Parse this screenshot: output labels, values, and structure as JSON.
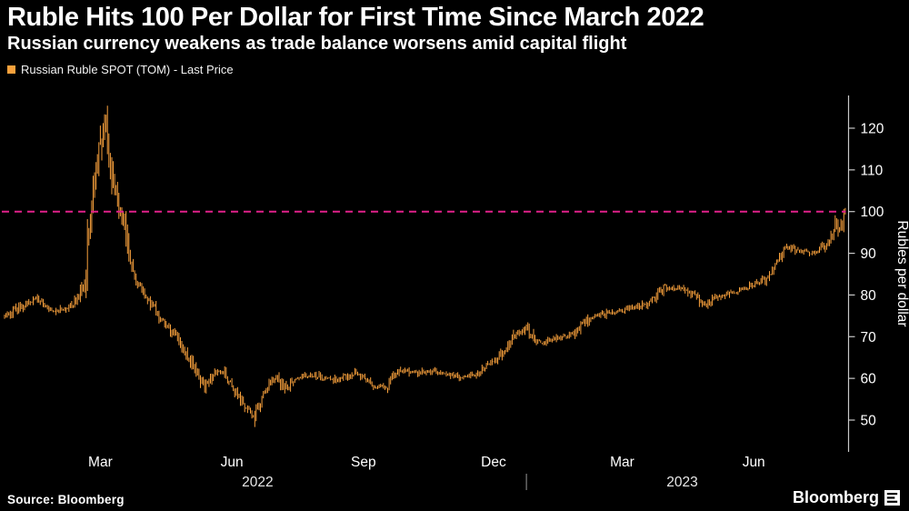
{
  "header": {
    "title": "Ruble Hits 100 Per Dollar for First Time Since March 2022",
    "subtitle": "Russian currency weakens as trade balance worsens amid capital flight"
  },
  "legend": {
    "label": "Russian Ruble SPOT (TOM) - Last Price",
    "swatch_color": "#f8a13c"
  },
  "footer": {
    "source": "Source: Bloomberg",
    "brand": "Bloomberg"
  },
  "chart_data": {
    "type": "line",
    "title": "Russian Ruble SPOT (TOM) - Last Price",
    "ylabel": "Rubles per dollar",
    "ylim": [
      42,
      128
    ],
    "yticks": [
      50,
      60,
      70,
      80,
      90,
      100,
      110,
      120
    ],
    "grid": false,
    "legend_position": "top-left",
    "background_color": "#000000",
    "x_unit": "days from start of 2022, weekly samples at 7-day steps",
    "xlim_days": [
      0,
      590
    ],
    "xticks": [
      {
        "label": "Mar",
        "day": 59
      },
      {
        "label": "Jun",
        "day": 151
      },
      {
        "label": "Sep",
        "day": 243
      },
      {
        "label": "Dec",
        "day": 334
      },
      {
        "label": "Mar",
        "day": 424
      },
      {
        "label": "Jun",
        "day": 516
      }
    ],
    "year_labels": [
      {
        "label": "2022",
        "day": 177
      },
      {
        "label": "2023",
        "day": 474
      }
    ],
    "year_divider_day": 365,
    "reference_line": {
      "value": 100,
      "color": "#e0218a",
      "style": "dashed"
    },
    "series": [
      {
        "name": "Russian Ruble SPOT (TOM) - Last Price",
        "color": "#f8a13c",
        "sampling": "weekly (values at day = index * 7)",
        "values": [
          75.0,
          76.5,
          77.5,
          79.0,
          77.5,
          76.0,
          76.5,
          78.0,
          83.0,
          108.0,
          121.0,
          104.0,
          97.0,
          84.0,
          80.0,
          77.0,
          73.0,
          70.5,
          66.0,
          63.0,
          57.5,
          61.5,
          61.0,
          57.0,
          53.0,
          51.0,
          57.0,
          60.5,
          57.5,
          60.0,
          60.5,
          60.5,
          60.0,
          59.5,
          60.5,
          61.0,
          60.0,
          58.0,
          57.5,
          61.0,
          62.0,
          61.5,
          61.5,
          61.5,
          61.0,
          60.5,
          60.5,
          61.0,
          62.5,
          64.5,
          67.0,
          70.5,
          72.0,
          69.0,
          68.5,
          69.5,
          70.0,
          71.0,
          73.5,
          75.0,
          75.5,
          76.0,
          76.5,
          77.0,
          77.5,
          79.5,
          82.0,
          81.5,
          81.5,
          79.5,
          77.5,
          79.5,
          80.0,
          81.0,
          81.5,
          83.0,
          84.0,
          87.0,
          92.0,
          90.5,
          90.5,
          90.0,
          92.0,
          95.5,
          99.8
        ]
      }
    ]
  }
}
